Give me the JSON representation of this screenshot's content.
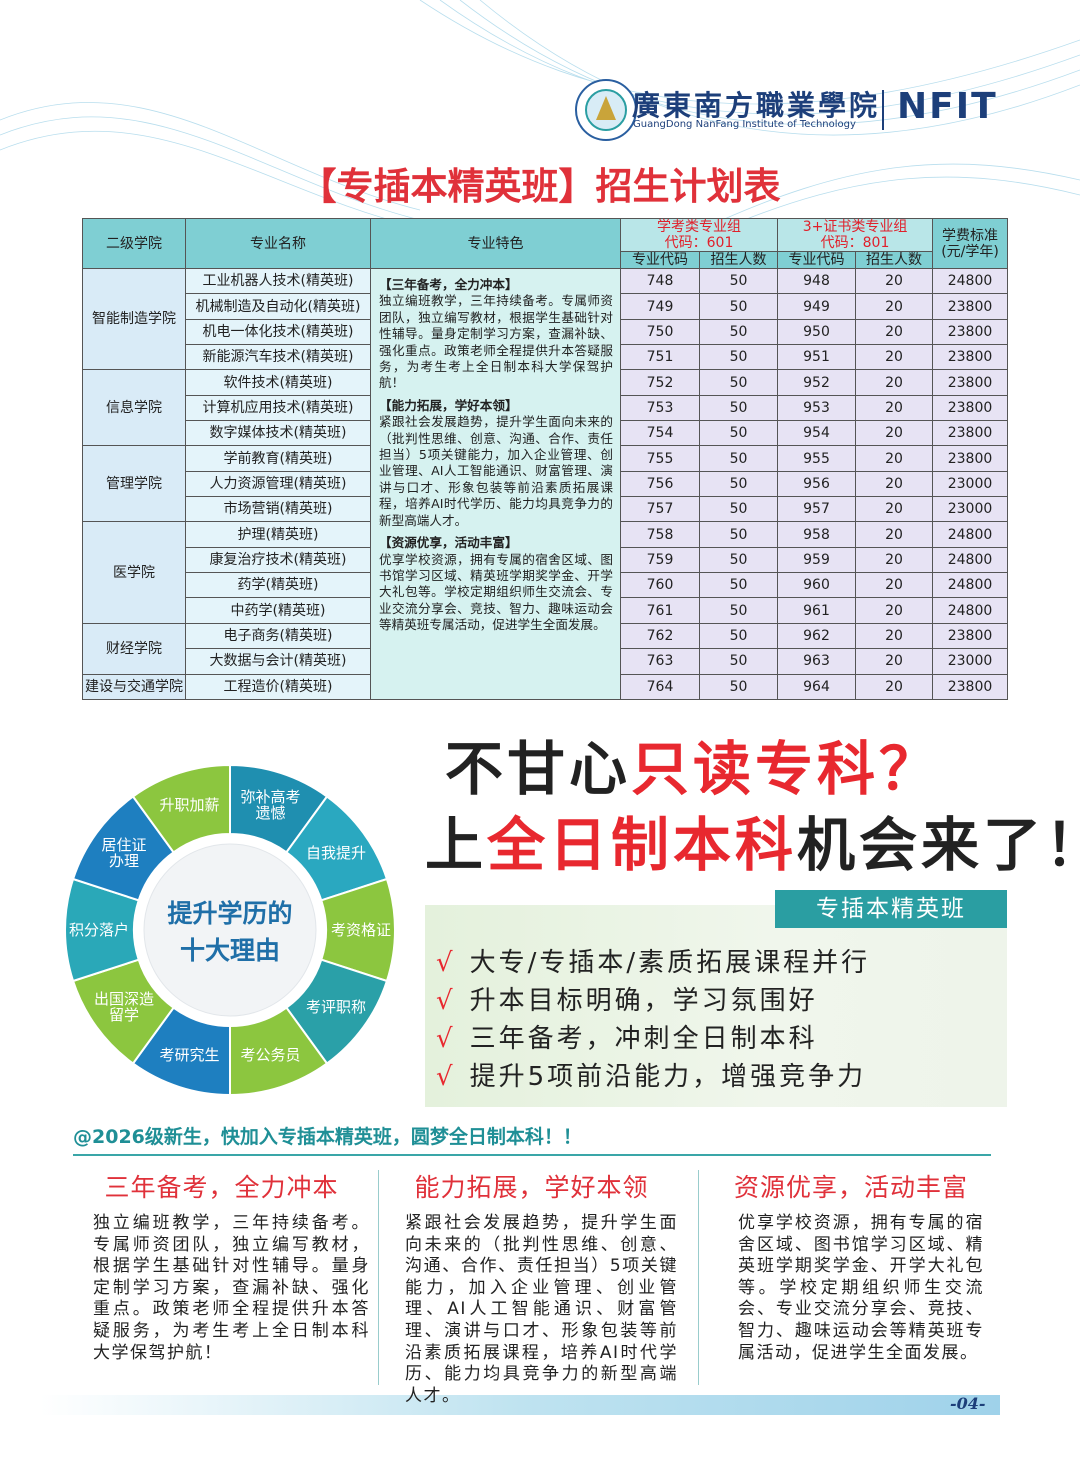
{
  "header": {
    "logo_cn": "廣東南方職業學院",
    "logo_en": "GuangDong NanFang Institute of Technology",
    "logo_abbr": "NFIT"
  },
  "title": "【专插本精英班】招生计划表",
  "table": {
    "headers": {
      "college": "二级学院",
      "major": "专业名称",
      "features": "专业特色",
      "group1": "学考类专业组\n代码：601",
      "group2": "3+证书类专业组\n代码：801",
      "fee": "学费标准\n(元/学年)",
      "sub": [
        "专业代码",
        "招生人数",
        "专业代码",
        "招生人数"
      ]
    },
    "features": [
      {
        "heading": "【三年备考，全力冲本】",
        "text": "独立编班教学，三年持续备考。专属师资团队，独立编写教材，根据学生基础针对性辅导。量身定制学习方案，查漏补缺、强化重点。政策老师全程提供升本答疑服务，为考生考上全日制本科大学保驾护航！"
      },
      {
        "heading": "【能力拓展，学好本领】",
        "text": "紧跟社会发展趋势，提升学生面向未来的（批判性思维、创意、沟通、合作、责任担当）5项关键能力，加入企业管理、创业管理、AI人工智能通识、财富管理、演讲与口才、形象包装等前沿素质拓展课程，培养AI时代学历、能力均具竞争力的新型高端人才。"
      },
      {
        "heading": "【资源优享，活动丰富】",
        "text": "优享学校资源，拥有专属的宿舍区域、图书馆学习区域、精英班学期奖学金、开学大礼包等。学校定期组织师生交流会、专业交流分享会、竞技、智力、趣味运动会等精英班专属活动，促进学生全面发展。"
      }
    ],
    "colleges": [
      {
        "name": "智能制造学院",
        "rows": [
          [
            "工业机器人技术(精英班)",
            748,
            50,
            948,
            20,
            24800
          ],
          [
            "机械制造及自动化(精英班)",
            749,
            50,
            949,
            20,
            23800
          ],
          [
            "机电一体化技术(精英班)",
            750,
            50,
            950,
            20,
            23800
          ],
          [
            "新能源汽车技术(精英班)",
            751,
            50,
            951,
            20,
            23800
          ]
        ]
      },
      {
        "name": "信息学院",
        "rows": [
          [
            "软件技术(精英班)",
            752,
            50,
            952,
            20,
            23800
          ],
          [
            "计算机应用技术(精英班)",
            753,
            50,
            953,
            20,
            23800
          ],
          [
            "数字媒体技术(精英班)",
            754,
            50,
            954,
            20,
            23800
          ]
        ]
      },
      {
        "name": "管理学院",
        "rows": [
          [
            "学前教育(精英班)",
            755,
            50,
            955,
            20,
            23800
          ],
          [
            "人力资源管理(精英班)",
            756,
            50,
            956,
            20,
            23000
          ],
          [
            "市场营销(精英班)",
            757,
            50,
            957,
            20,
            23000
          ]
        ]
      },
      {
        "name": "医学院",
        "rows": [
          [
            "护理(精英班)",
            758,
            50,
            958,
            20,
            24800
          ],
          [
            "康复治疗技术(精英班)",
            759,
            50,
            959,
            20,
            24800
          ],
          [
            "药学(精英班)",
            760,
            50,
            960,
            20,
            24800
          ],
          [
            "中药学(精英班)",
            761,
            50,
            961,
            20,
            24800
          ]
        ]
      },
      {
        "name": "财经学院",
        "rows": [
          [
            "电子商务(精英班)",
            762,
            50,
            962,
            20,
            23800
          ],
          [
            "大数据与会计(精英班)",
            763,
            50,
            963,
            20,
            23000
          ]
        ]
      },
      {
        "name": "建设与交通学院",
        "rows": [
          [
            "工程造价(精英班)",
            764,
            50,
            964,
            20,
            23800
          ]
        ]
      }
    ]
  },
  "slogan": {
    "line1": [
      "不甘心",
      "只读专科？"
    ],
    "line2": [
      "上",
      "全日制本科",
      "机会来了！"
    ]
  },
  "wheel": {
    "center": "提升学历的\n十大理由",
    "segments": [
      "弥补高考\n遗憾",
      "自我提升",
      "考资格证",
      "考评职称",
      "考公务员",
      "考研究生",
      "出国深造\n留学",
      "积分落户",
      "居住证\n办理",
      "升职加薪"
    ]
  },
  "highlights": {
    "tag": "专插本精英班",
    "mark": "√",
    "items": [
      "大专/专插本/素质拓展课程并行",
      "升本目标明确，学习氛围好",
      "三年备考，冲刺全日制本科",
      "提升5项前沿能力，增强竞争力"
    ]
  },
  "call_to_action": "@2026级新生，快加入专插本精英班，圆梦全日制本科！！",
  "columns": [
    {
      "title": "三年备考，全力冲本",
      "text": "独立编班教学，三年持续备考。专属师资团队，独立编写教材，根据学生基础针对性辅导。量身定制学习方案，查漏补缺、强化重点。政策老师全程提供升本答疑服务，为考生考上全日制本科大学保驾护航！"
    },
    {
      "title": "能力拓展，学好本领",
      "text": "紧跟社会发展趋势，提升学生面向未来的（批判性思维、创意、沟通、合作、责任担当）5项关键能力，加入企业管理、创业管理、AI人工智能通识、财富管理、演讲与口才、形象包装等前沿素质拓展课程，培养AI时代学历、能力均具竞争力的新型高端人才。"
    },
    {
      "title": "资源优享，活动丰富",
      "text": "优享学校资源，拥有专属的宿舍区域、图书馆学习区域、精英班学期奖学金、开学大礼包等。学校定期组织师生交流会、专业交流分享会、竞技、智力、趣味运动会等精英班专属活动，促进学生全面发展。"
    }
  ],
  "page_number": "-04-"
}
